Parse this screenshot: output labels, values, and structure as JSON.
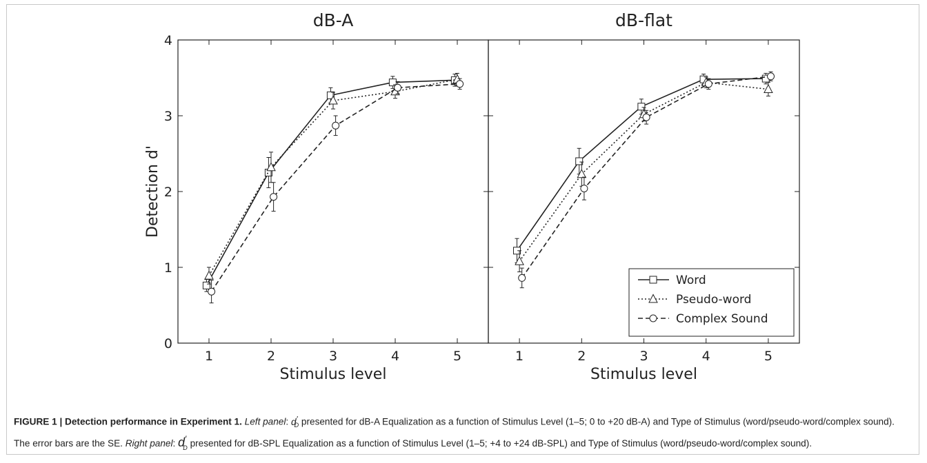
{
  "chart_data": [
    {
      "type": "line",
      "title": "dB-A",
      "xlabel": "Stimulus level",
      "ylabel": "Detection d'",
      "x": [
        1,
        2,
        3,
        4,
        5
      ],
      "xlim": [
        0.5,
        5.5
      ],
      "ylim": [
        0,
        4
      ],
      "xticks": [
        "1",
        "2",
        "3",
        "4",
        "5"
      ],
      "yticks": [
        "0",
        "1",
        "2",
        "3",
        "4"
      ],
      "grid": false,
      "series": [
        {
          "name": "Word",
          "marker": "square",
          "linestyle": "solid",
          "values": [
            0.76,
            2.25,
            3.27,
            3.44,
            3.47
          ],
          "errors": [
            0.08,
            0.2,
            0.1,
            0.08,
            0.08
          ],
          "x_offset": -0.04
        },
        {
          "name": "Pseudo-word",
          "marker": "triangle",
          "linestyle": "dotted",
          "values": [
            0.89,
            2.32,
            3.2,
            3.32,
            3.48
          ],
          "errors": [
            0.11,
            0.2,
            0.11,
            0.09,
            0.08
          ],
          "x_offset": 0.0
        },
        {
          "name": "Complex Sound",
          "marker": "circle",
          "linestyle": "dashed",
          "values": [
            0.68,
            1.93,
            2.87,
            3.37,
            3.42
          ],
          "errors": [
            0.15,
            0.19,
            0.13,
            0.08,
            0.07
          ],
          "x_offset": 0.04
        }
      ]
    },
    {
      "type": "line",
      "title": "dB-flat",
      "xlabel": "Stimulus level",
      "ylabel": "",
      "x": [
        1,
        2,
        3,
        4,
        5
      ],
      "xlim": [
        0.5,
        5.5
      ],
      "ylim": [
        0,
        4
      ],
      "xticks": [
        "1",
        "2",
        "3",
        "4",
        "5"
      ],
      "grid": false,
      "legend": "lower-right",
      "series": [
        {
          "name": "Word",
          "marker": "square",
          "linestyle": "solid",
          "values": [
            1.22,
            2.4,
            3.12,
            3.48,
            3.49
          ],
          "errors": [
            0.16,
            0.17,
            0.1,
            0.07,
            0.07
          ],
          "x_offset": -0.04
        },
        {
          "name": "Pseudo-word",
          "marker": "triangle",
          "linestyle": "dotted",
          "values": [
            1.08,
            2.23,
            3.02,
            3.44,
            3.35
          ],
          "errors": [
            0.14,
            0.16,
            0.09,
            0.07,
            0.09
          ],
          "x_offset": 0.0
        },
        {
          "name": "Complex Sound",
          "marker": "circle",
          "linestyle": "dashed",
          "values": [
            0.86,
            2.04,
            2.98,
            3.42,
            3.52
          ],
          "errors": [
            0.13,
            0.15,
            0.09,
            0.07,
            0.06
          ],
          "x_offset": 0.04
        }
      ]
    }
  ],
  "caption": {
    "label": "FIGURE 1 | Detection performance in Experiment 1.",
    "left_panel_label": "Left panel",
    "left_panel_text": " presented for dB-A Equalization as a function of Stimulus Level (1–5; 0 to +20 dB-A) and Type of Stimulus (word/pseudo-word/complex sound). The error bars are the SE. ",
    "right_panel_label": "Right panel",
    "right_panel_text": " presented for dB-SPL Equalization as a function of Stimulus Level (1–5; +4 to +24 dB-SPL) and Type of Stimulus (word/pseudo-word/complex sound).",
    "symbol_base": "d",
    "symbol_prime": "′",
    "symbol_sub": "D"
  }
}
